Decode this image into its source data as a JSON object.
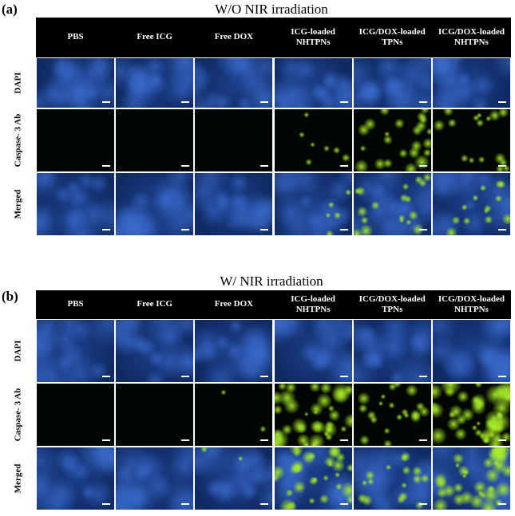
{
  "panels": [
    {
      "label": "(a)",
      "title": "W/O NIR irradiation",
      "columns": [
        "PBS",
        "Free ICG",
        "Free DOX",
        "ICG-loaded NHTPNs",
        "ICG/DOX-loaded TPNs",
        "ICG/DOX-loaded NHTPNs"
      ],
      "rows": [
        "DAPI",
        "Caspase- 3 Ab",
        "Merged"
      ]
    },
    {
      "label": "(b)",
      "title": "W/ NIR irradiation",
      "columns": [
        "PBS",
        "Free ICG",
        "Free DOX",
        "ICG-loaded NHTPNs",
        "ICG/DOX-loaded TPNs",
        "ICG/DOX-loaded NHTPNs"
      ],
      "rows": [
        "DAPI",
        "Caspase- 3 Ab",
        "Merged"
      ]
    }
  ]
}
